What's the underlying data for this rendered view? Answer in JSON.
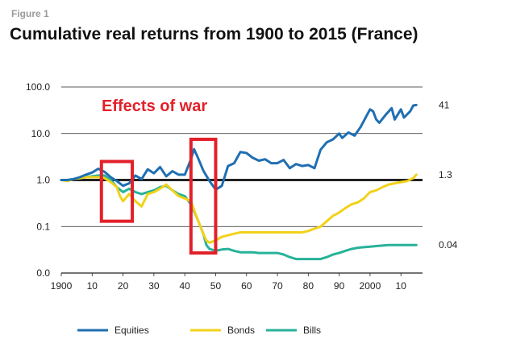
{
  "figure_label": "Figure 1",
  "colors": {
    "equities": "#1f6fb2",
    "bonds": "#f2d21a",
    "bills": "#28b29a",
    "annotation": "#e3202a",
    "grid": "#222222"
  },
  "chart_data": {
    "type": "line",
    "title": "Cumulative real returns from 1900 to 2015 (France)",
    "xlabel": "",
    "ylabel": "",
    "xlim": [
      1900,
      2017
    ],
    "ylim": [
      0.01,
      100
    ],
    "yscale": "log",
    "grid": "horizontal",
    "legend_position": "bottom",
    "y_ticks": [
      {
        "value": 100,
        "label": "100.0"
      },
      {
        "value": 10,
        "label": "10.0"
      },
      {
        "value": 1,
        "label": "1.0"
      },
      {
        "value": 0.1,
        "label": "0.1"
      },
      {
        "value": 0.01,
        "label": "0.0"
      }
    ],
    "x_ticks": [
      {
        "value": 1900,
        "label": "1900"
      },
      {
        "value": 1910,
        "label": "10"
      },
      {
        "value": 1920,
        "label": "20"
      },
      {
        "value": 1930,
        "label": "30"
      },
      {
        "value": 1940,
        "label": "40"
      },
      {
        "value": 1950,
        "label": "50"
      },
      {
        "value": 1960,
        "label": "60"
      },
      {
        "value": 1970,
        "label": "70"
      },
      {
        "value": 1980,
        "label": "80"
      },
      {
        "value": 1990,
        "label": "90"
      },
      {
        "value": 2000,
        "label": "2000"
      },
      {
        "value": 2010,
        "label": "10"
      }
    ],
    "series": [
      {
        "name": "Equities",
        "end_label": "41",
        "x": [
          1900,
          1902,
          1904,
          1906,
          1908,
          1910,
          1912,
          1914,
          1916,
          1918,
          1920,
          1922,
          1924,
          1926,
          1928,
          1930,
          1932,
          1934,
          1936,
          1938,
          1940,
          1942,
          1943,
          1944,
          1945,
          1946,
          1948,
          1950,
          1952,
          1954,
          1956,
          1958,
          1960,
          1962,
          1964,
          1966,
          1968,
          1970,
          1972,
          1974,
          1976,
          1978,
          1980,
          1982,
          1984,
          1986,
          1988,
          1990,
          1991,
          1993,
          1995,
          1997,
          1999,
          2000,
          2001,
          2002,
          2003,
          2005,
          2007,
          2008,
          2010,
          2011,
          2013,
          2014,
          2015
        ],
        "y": [
          1.0,
          1.0,
          1.05,
          1.15,
          1.3,
          1.45,
          1.75,
          1.5,
          1.15,
          0.95,
          0.75,
          0.85,
          1.25,
          1.05,
          1.7,
          1.4,
          1.9,
          1.2,
          1.55,
          1.3,
          1.3,
          2.8,
          4.6,
          3.3,
          2.3,
          1.6,
          0.95,
          0.62,
          0.75,
          2.0,
          2.3,
          4.0,
          3.8,
          3.0,
          2.6,
          2.8,
          2.3,
          2.3,
          2.7,
          1.8,
          2.2,
          2.0,
          2.1,
          1.8,
          4.5,
          6.5,
          7.5,
          10.0,
          8.0,
          10.5,
          9.0,
          14.0,
          25.0,
          33.0,
          30.0,
          20.0,
          17.0,
          25.0,
          35.0,
          20.0,
          33.0,
          22.0,
          30.0,
          40.0,
          41.0
        ]
      },
      {
        "name": "Bonds",
        "end_label": "1.3",
        "x": [
          1900,
          1902,
          1904,
          1906,
          1908,
          1910,
          1912,
          1914,
          1916,
          1918,
          1919,
          1920,
          1922,
          1924,
          1926,
          1928,
          1930,
          1932,
          1934,
          1936,
          1938,
          1940,
          1942,
          1944,
          1946,
          1947,
          1948,
          1950,
          1952,
          1954,
          1956,
          1958,
          1960,
          1962,
          1964,
          1966,
          1968,
          1970,
          1972,
          1974,
          1976,
          1978,
          1980,
          1982,
          1984,
          1986,
          1988,
          1990,
          1992,
          1994,
          1996,
          1998,
          2000,
          2002,
          2004,
          2006,
          2008,
          2010,
          2012,
          2014,
          2015
        ],
        "y": [
          1.0,
          0.95,
          1.05,
          1.1,
          1.15,
          1.15,
          1.15,
          1.1,
          0.9,
          0.7,
          0.45,
          0.35,
          0.5,
          0.35,
          0.27,
          0.5,
          0.55,
          0.65,
          0.8,
          0.6,
          0.45,
          0.4,
          0.35,
          0.15,
          0.07,
          0.05,
          0.045,
          0.05,
          0.06,
          0.065,
          0.07,
          0.075,
          0.075,
          0.075,
          0.075,
          0.075,
          0.075,
          0.075,
          0.075,
          0.075,
          0.075,
          0.075,
          0.08,
          0.09,
          0.1,
          0.13,
          0.17,
          0.2,
          0.25,
          0.3,
          0.33,
          0.4,
          0.55,
          0.6,
          0.7,
          0.8,
          0.85,
          0.9,
          0.95,
          1.1,
          1.3
        ]
      },
      {
        "name": "Bills",
        "end_label": "0.04",
        "x": [
          1900,
          1902,
          1904,
          1906,
          1908,
          1910,
          1912,
          1914,
          1916,
          1918,
          1920,
          1922,
          1924,
          1926,
          1928,
          1930,
          1932,
          1934,
          1936,
          1938,
          1940,
          1942,
          1944,
          1946,
          1947,
          1948,
          1950,
          1952,
          1954,
          1956,
          1958,
          1960,
          1962,
          1964,
          1966,
          1968,
          1970,
          1972,
          1974,
          1976,
          1978,
          1980,
          1982,
          1984,
          1986,
          1988,
          1990,
          1992,
          1994,
          1996,
          1998,
          2000,
          2002,
          2004,
          2006,
          2008,
          2010,
          2012,
          2014,
          2015
        ],
        "y": [
          1.0,
          1.0,
          1.05,
          1.1,
          1.15,
          1.2,
          1.25,
          1.25,
          1.0,
          0.7,
          0.55,
          0.65,
          0.55,
          0.5,
          0.55,
          0.6,
          0.7,
          0.75,
          0.6,
          0.5,
          0.45,
          0.3,
          0.15,
          0.07,
          0.04,
          0.033,
          0.03,
          0.032,
          0.033,
          0.03,
          0.028,
          0.028,
          0.028,
          0.027,
          0.027,
          0.027,
          0.027,
          0.025,
          0.022,
          0.02,
          0.02,
          0.02,
          0.02,
          0.02,
          0.022,
          0.025,
          0.027,
          0.03,
          0.033,
          0.035,
          0.036,
          0.037,
          0.038,
          0.039,
          0.04,
          0.04,
          0.04,
          0.04,
          0.04,
          0.04
        ]
      }
    ],
    "annotations": [
      {
        "text": "Effects of war"
      },
      {
        "type": "box",
        "x_range": [
          1913,
          1923
        ],
        "y_range": [
          0.13,
          2.5
        ]
      },
      {
        "type": "box",
        "x_range": [
          1942,
          1950
        ],
        "y_range": [
          0.027,
          7.5
        ]
      }
    ]
  }
}
